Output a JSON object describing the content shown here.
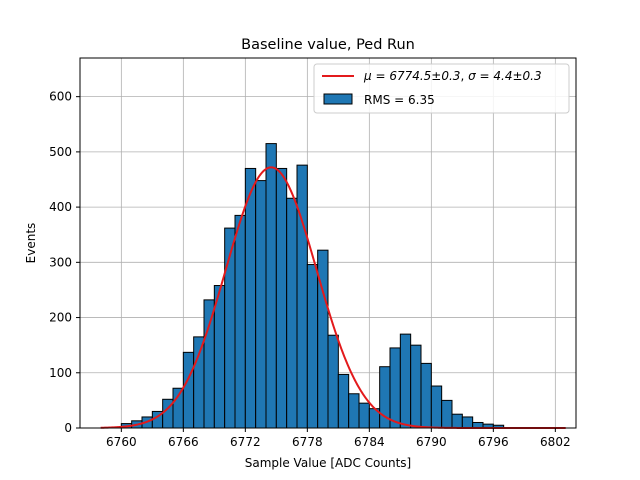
{
  "chart_data": {
    "type": "bar",
    "title": "Baseline value, Ped Run",
    "xlabel": "Sample Value [ADC Counts]",
    "ylabel": "Events",
    "xlim": [
      6756.0,
      6804.0
    ],
    "ylim": [
      0,
      670
    ],
    "xticks": [
      6760,
      6766,
      6772,
      6778,
      6784,
      6790,
      6796,
      6802
    ],
    "yticks": [
      0,
      100,
      200,
      300,
      400,
      500,
      600
    ],
    "grid": true,
    "legend_position": "upper right",
    "bar_color": "#1f77b4",
    "fit_color": "#e31a1c",
    "histogram": {
      "name": "RMS = 6.35",
      "bin_width": 1,
      "bin_starts": [
        6760,
        6761,
        6762,
        6763,
        6764,
        6765,
        6766,
        6767,
        6768,
        6769,
        6770,
        6771,
        6772,
        6773,
        6774,
        6775,
        6776,
        6777,
        6778,
        6779,
        6780,
        6781,
        6782,
        6783,
        6784,
        6785,
        6786,
        6787,
        6788,
        6789,
        6790,
        6791,
        6792,
        6793,
        6794,
        6795,
        6796
      ],
      "values": [
        8,
        13,
        20,
        30,
        52,
        72,
        137,
        165,
        232,
        258,
        362,
        385,
        470,
        448,
        515,
        470,
        416,
        476,
        296,
        322,
        168,
        97,
        62,
        45,
        35,
        111,
        145,
        170,
        150,
        117,
        76,
        50,
        25,
        20,
        10,
        7,
        5
      ]
    },
    "fit": {
      "label_mu": "μ = 6774.5±0.3",
      "label_sigma": "σ = 4.4±0.3",
      "mu": 6774.5,
      "sigma": 4.4,
      "amplitude": 472,
      "x_range": [
        6758,
        6803
      ]
    }
  }
}
